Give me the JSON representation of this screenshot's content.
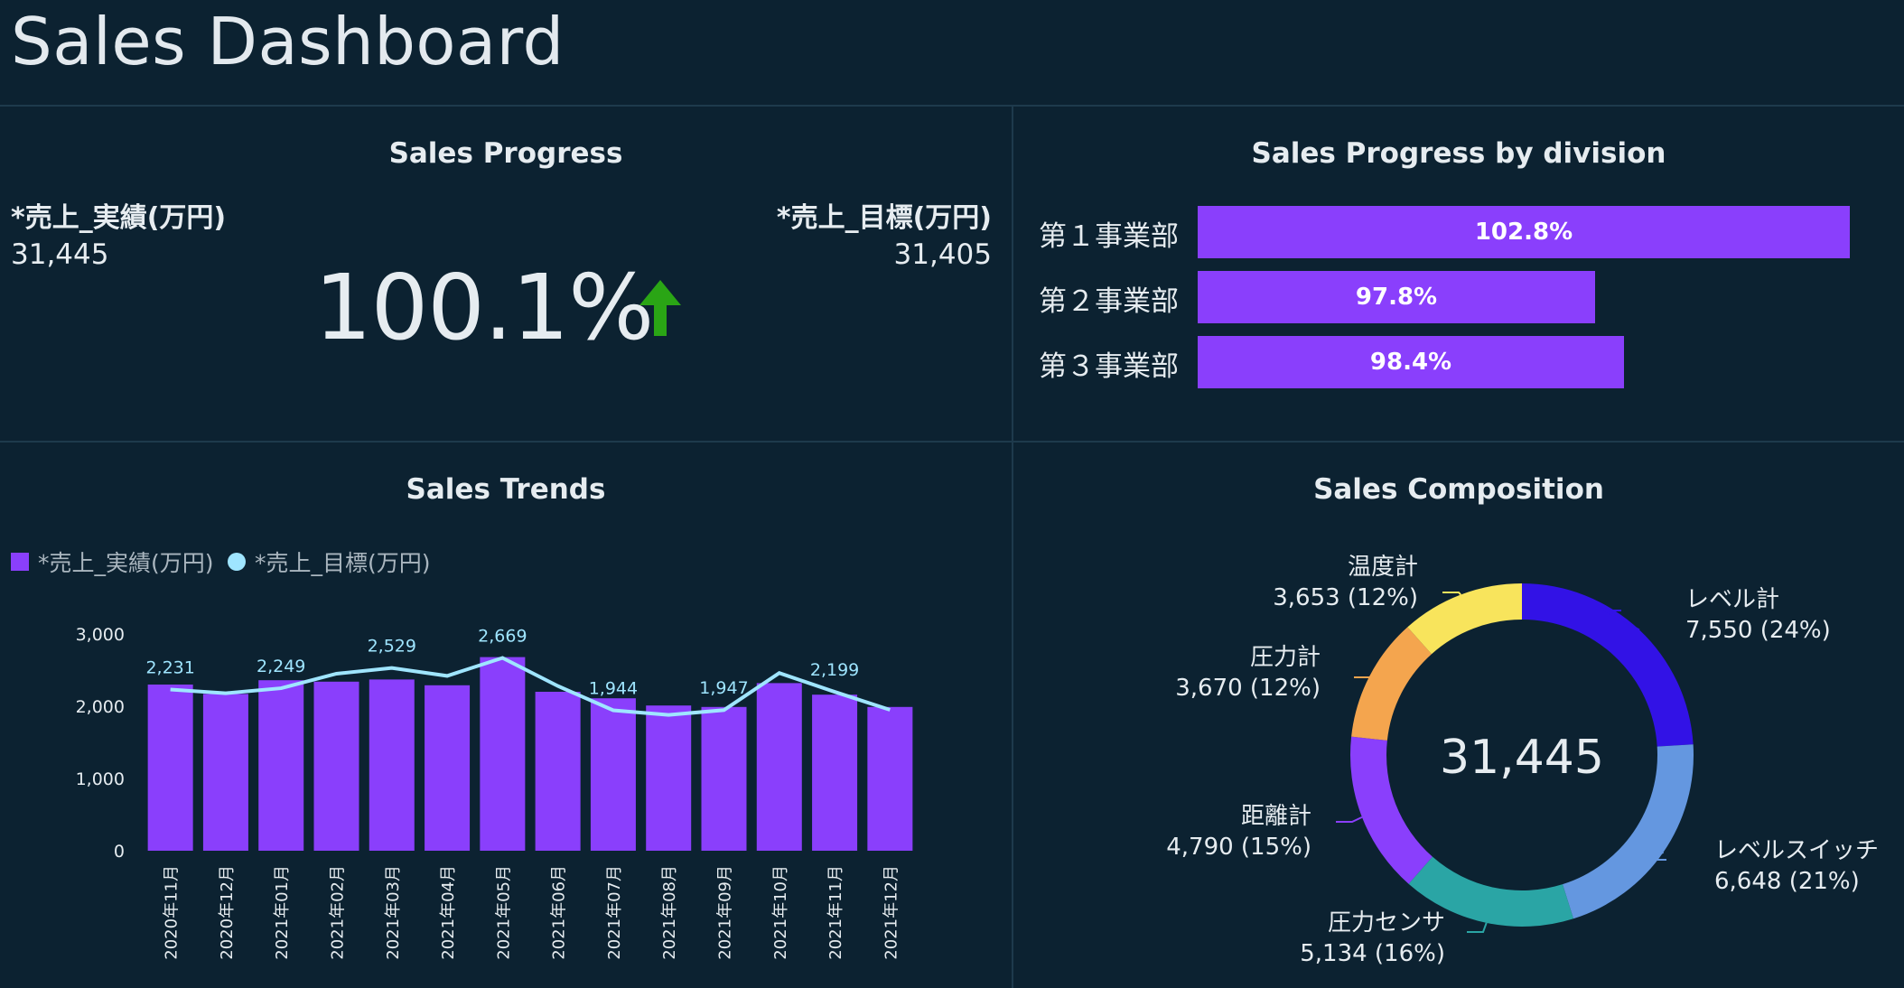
{
  "page": {
    "title": "Sales Dashboard"
  },
  "sales_progress": {
    "title": "Sales Progress",
    "actual_label": "*売上_実績(万円)",
    "actual_value": "31,445",
    "target_label": "*売上_目標(万円)",
    "target_value": "31,405",
    "percent": "100.1%",
    "trend_color": "#2aa515"
  },
  "division": {
    "title": "Sales Progress by division",
    "bar_color": "#8a3ffc",
    "items": [
      {
        "name": "第１事業部",
        "label": "102.8%",
        "value": 102.8
      },
      {
        "name": "第２事業部",
        "label": "97.8%",
        "value": 97.8
      },
      {
        "name": "第３事業部",
        "label": "98.4%",
        "value": 98.4
      }
    ]
  },
  "trends": {
    "title": "Sales Trends",
    "legend": {
      "actual": "*売上_実績(万円)",
      "target": "*売上_目標(万円)"
    }
  },
  "composition": {
    "title": "Sales Composition",
    "total": "31,445"
  },
  "chart_data": [
    {
      "type": "bar+line",
      "title": "Sales Trends",
      "categories": [
        "2020年11月",
        "2020年12月",
        "2021年01月",
        "2021年02月",
        "2021年03月",
        "2021年04月",
        "2021年05月",
        "2021年06月",
        "2021年07月",
        "2021年08月",
        "2021年09月",
        "2021年10月",
        "2021年11月",
        "2021年12月"
      ],
      "series": [
        {
          "name": "*売上_実績(万円)",
          "kind": "bar",
          "color": "#8a3ffc",
          "values": [
            2300,
            2170,
            2360,
            2340,
            2370,
            2290,
            2680,
            2200,
            2110,
            2010,
            1990,
            2320,
            2160,
            1990
          ]
        },
        {
          "name": "*売上_目標(万円)",
          "kind": "line",
          "color": "#9fe5ff",
          "values": [
            2231,
            2180,
            2249,
            2450,
            2529,
            2420,
            2669,
            2280,
            1944,
            1880,
            1947,
            2460,
            2199,
            1950
          ]
        }
      ],
      "data_labels": [
        "2,231",
        "",
        "2,249",
        "",
        "2,529",
        "",
        "2,669",
        "",
        "1,944",
        "",
        "1,947",
        "",
        "2,199",
        ""
      ],
      "yticks": [
        "0",
        "1,000",
        "2,000",
        "3,000"
      ],
      "ylim": [
        0,
        3000
      ]
    },
    {
      "type": "pie",
      "title": "Sales Composition",
      "center_label": "31,445",
      "slices": [
        {
          "name": "レベル計",
          "value": 7550,
          "label": "7,550 (24%)",
          "color": "#3212e6"
        },
        {
          "name": "レベルスイッチ",
          "value": 6648,
          "label": "6,648 (21%)",
          "color": "#6497e0"
        },
        {
          "name": "圧力センサ",
          "value": 5134,
          "label": "5,134 (16%)",
          "color": "#2aa5a5"
        },
        {
          "name": "距離計",
          "value": 4790,
          "label": "4,790 (15%)",
          "color": "#8a3ffc"
        },
        {
          "name": "圧力計",
          "value": 3670,
          "label": "3,670 (12%)",
          "color": "#f4a54e"
        },
        {
          "name": "温度計",
          "value": 3653,
          "label": "3,653 (12%)",
          "color": "#f8e45c"
        }
      ]
    }
  ]
}
